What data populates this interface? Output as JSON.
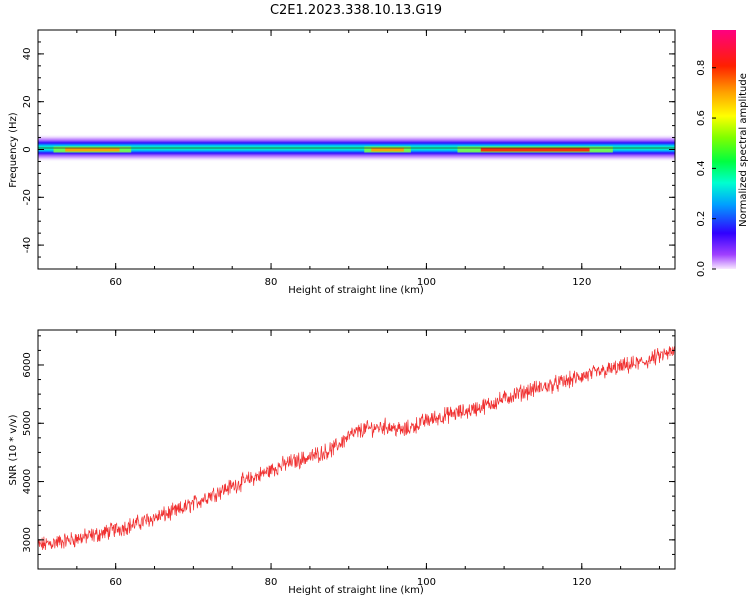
{
  "figure": {
    "title": "C2E1.2023.338.10.13.G19"
  },
  "chart_data": [
    {
      "type": "heatmap",
      "xlabel": "Height of straight line (km)",
      "ylabel": "Frequency (Hz)",
      "xlim": [
        50,
        132
      ],
      "ylim": [
        -50,
        50
      ],
      "xticks": [
        60,
        80,
        100,
        120
      ],
      "yticks": [
        -40,
        -20,
        0,
        20,
        40
      ],
      "colorbar": {
        "label": "Normalized spectral amplitude",
        "range": [
          0,
          0.95
        ],
        "ticks": [
          "0.0",
          "0.2",
          "0.4",
          "0.6",
          "0.8"
        ]
      },
      "description_band": {
        "center_frequency": 0,
        "half_width_hz": 3,
        "peak_x_ranges_km": [
          [
            52,
            62
          ],
          [
            92,
            98
          ],
          [
            104,
            124
          ]
        ]
      }
    },
    {
      "type": "line",
      "xlabel": "Height of straight line (km)",
      "ylabel": "SNR (10 * v/v)",
      "xlim": [
        50,
        132
      ],
      "ylim": [
        2500,
        6600
      ],
      "xticks": [
        60,
        80,
        100,
        120
      ],
      "yticks": [
        3000,
        4000,
        5000,
        6000
      ],
      "color": "#f03030",
      "series": [
        {
          "x": [
            50,
            52,
            55,
            58,
            60,
            62,
            65,
            68,
            70,
            72,
            75,
            78,
            80,
            82,
            85,
            88,
            90,
            92,
            95,
            97,
            100,
            103,
            105,
            108,
            110,
            112,
            115,
            118,
            120,
            122,
            125,
            128,
            130,
            132
          ],
          "values": [
            2900,
            2950,
            3020,
            3100,
            3180,
            3250,
            3380,
            3500,
            3620,
            3760,
            3920,
            4080,
            4200,
            4310,
            4420,
            4560,
            4780,
            4900,
            4950,
            4870,
            5050,
            5150,
            5200,
            5320,
            5420,
            5520,
            5620,
            5720,
            5800,
            5870,
            5960,
            6050,
            6150,
            6230
          ]
        }
      ]
    }
  ]
}
